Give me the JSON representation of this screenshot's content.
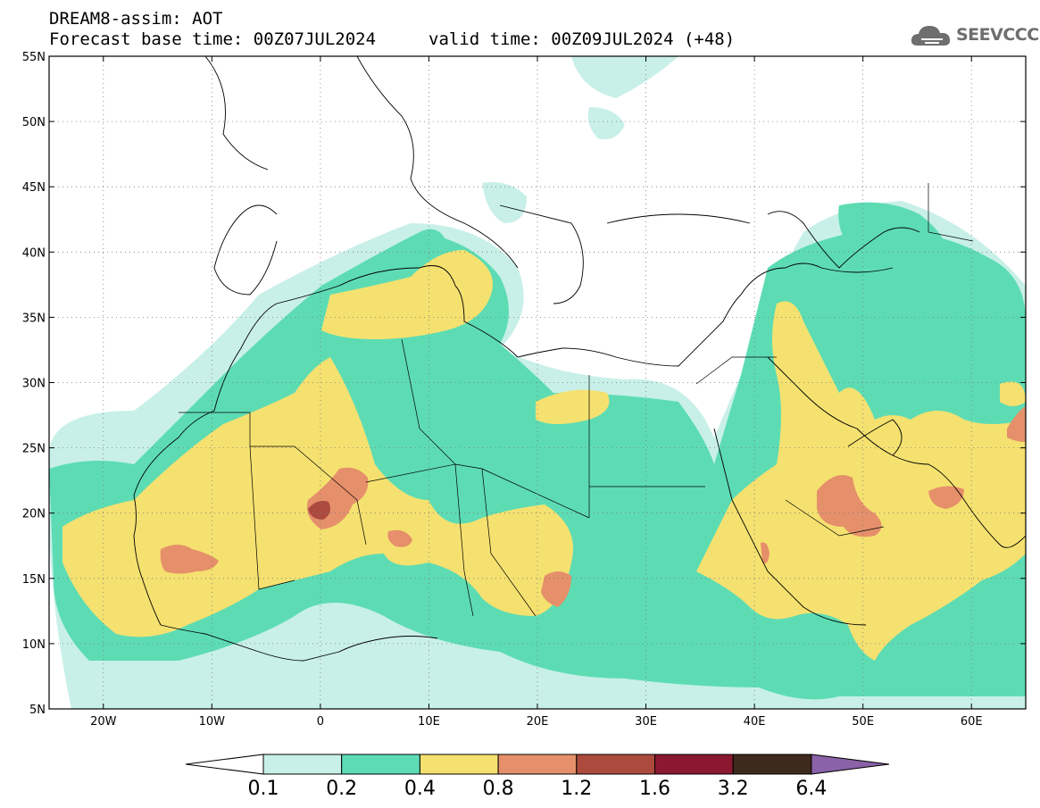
{
  "header": {
    "line1": "DREAM8-assim: AOT",
    "line2_left": "Forecast base time: 00Z07JUL2024",
    "line2_right": "valid time: 00Z09JUL2024 (+48)"
  },
  "logo": {
    "text": "SEEVCCC",
    "icon": "cloud-icon"
  },
  "map": {
    "lon_range": [
      -25,
      65
    ],
    "lat_range": [
      5,
      55
    ],
    "lat_ticks": [
      "55N",
      "50N",
      "45N",
      "40N",
      "35N",
      "30N",
      "25N",
      "20N",
      "15N",
      "10N",
      "5N"
    ],
    "lon_ticks": [
      "20W",
      "10W",
      "0",
      "10E",
      "20E",
      "30E",
      "40E",
      "50E",
      "60E"
    ],
    "grid": "dotted"
  },
  "colorbar": {
    "labels": [
      "0.1",
      "0.2",
      "0.4",
      "0.8",
      "1.2",
      "1.6",
      "3.2",
      "6.4"
    ],
    "colors": [
      "#ffffff",
      "#c8f0e8",
      "#5ddcb4",
      "#f5e170",
      "#e5906a",
      "#ad4a3e",
      "#8a1830",
      "#3e2a1c",
      "#8a62a8"
    ]
  },
  "colors": {
    "c01": "#c8f0e8",
    "c02": "#5ddcb4",
    "c04": "#f5e170",
    "c08": "#e5906a",
    "c12": "#ad4a3e",
    "c16": "#8a1830"
  }
}
